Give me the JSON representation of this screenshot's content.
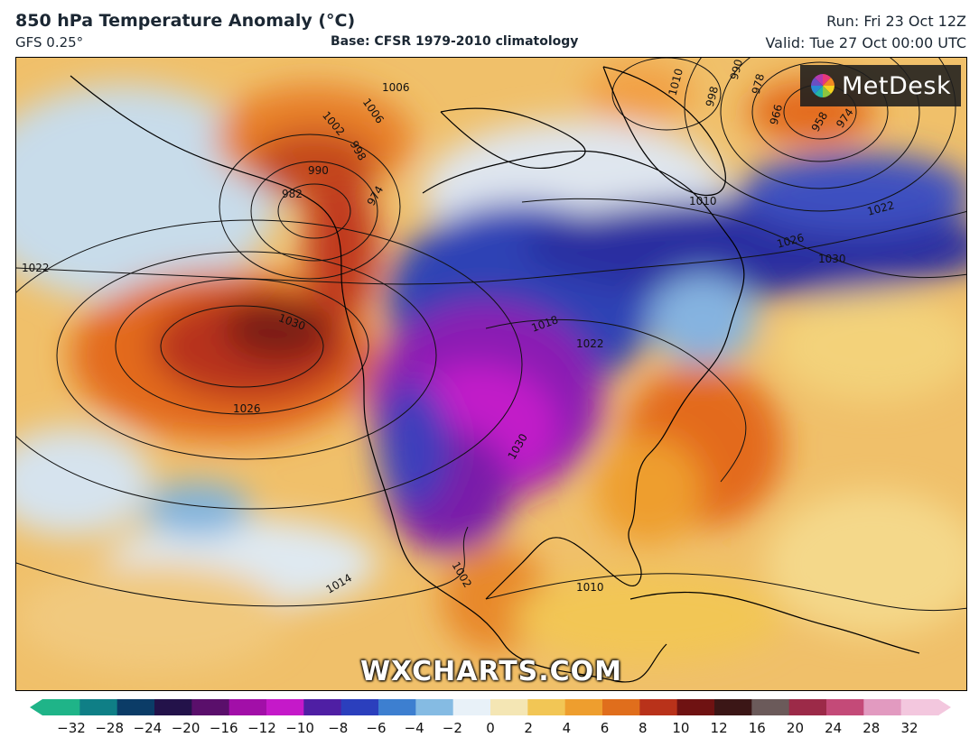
{
  "header": {
    "title": "850 hPa Temperature Anomaly (°C)",
    "model": "GFS 0.25°",
    "base": "Base: CFSR 1979-2010 climatology",
    "run": "Run: Fri 23 Oct 12Z",
    "valid": "Valid: Tue 27 Oct 00:00 UTC"
  },
  "logo": {
    "text": "MetDesk",
    "icon": "metdesk-pinwheel-icon"
  },
  "watermark": "WXCHARTS.COM",
  "isobar_labels": [
    "1006",
    "1002",
    "1006",
    "990",
    "998",
    "982",
    "974",
    "1010",
    "990",
    "998",
    "978",
    "966",
    "958",
    "974",
    "1010",
    "1022",
    "1026",
    "1030",
    "1022",
    "1030",
    "1018",
    "1022",
    "1026",
    "1030",
    "1014",
    "1002",
    "1010"
  ],
  "colorbar": {
    "ticks": [
      "−32",
      "−28",
      "−24",
      "−20",
      "−16",
      "−12",
      "−10",
      "−8",
      "−6",
      "−4",
      "−2",
      "0",
      "2",
      "4",
      "6",
      "8",
      "10",
      "12",
      "16",
      "20",
      "24",
      "28",
      "32"
    ],
    "colors": [
      "#1fb488",
      "#0f7f86",
      "#0b3c67",
      "#23124a",
      "#5a0f6b",
      "#a20fa8",
      "#c519c9",
      "#4f1fa4",
      "#2b3fbd",
      "#3d7fd0",
      "#85bbe3",
      "#e8f1f8",
      "#f4e6b4",
      "#f2c655",
      "#ee9e2e",
      "#e06e1c",
      "#b9321a",
      "#6f1212",
      "#3b1616",
      "#6b5a5a",
      "#9c2a48",
      "#c44a78",
      "#e29ac0",
      "#f3c7de"
    ]
  }
}
